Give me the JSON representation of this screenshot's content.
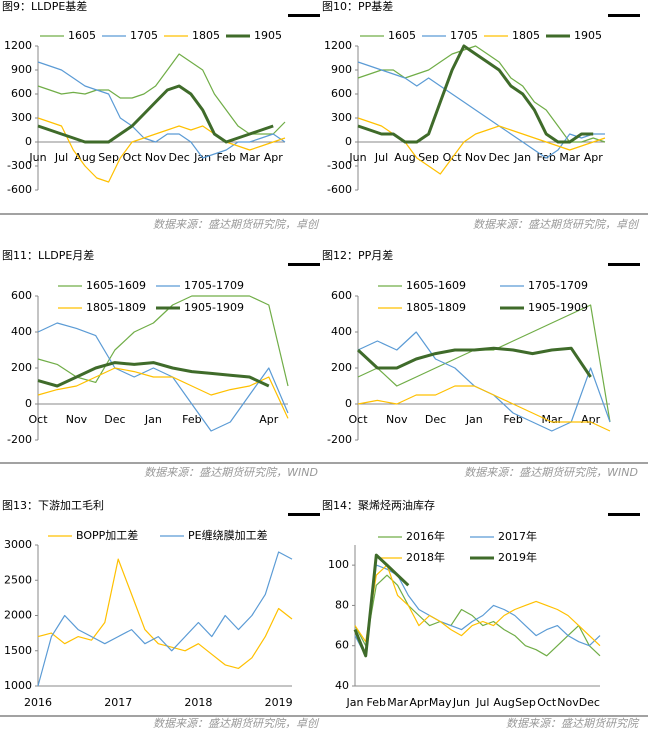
{
  "chart_data": [
    {
      "type": "line",
      "title": "图9：LLDPE基差",
      "source": "数据来源：盛达期货研究院，卓创",
      "categories": [
        "Jun",
        null,
        "Jul",
        null,
        "Aug",
        null,
        "Sep",
        null,
        "Oct",
        null,
        "Nov",
        null,
        "Dec",
        null,
        "Jan",
        null,
        "Feb",
        null,
        "Mar",
        null,
        "Apr",
        null
      ],
      "ylim": [
        -600,
        1200
      ],
      "yticks": [
        -600,
        -300,
        0,
        300,
        600,
        900,
        1200
      ],
      "series": [
        {
          "name": "1605",
          "color": "#70ad47",
          "line_width": 1.2,
          "values": [
            700,
            650,
            600,
            620,
            600,
            650,
            650,
            550,
            550,
            600,
            700,
            900,
            1100,
            1000,
            900,
            600,
            400,
            200,
            100,
            100,
            100,
            250
          ]
        },
        {
          "name": "1705",
          "color": "#5b9bd5",
          "line_width": 1.2,
          "values": [
            1000,
            950,
            900,
            800,
            700,
            650,
            600,
            300,
            200,
            50,
            0,
            100,
            100,
            0,
            -200,
            -150,
            -100,
            0,
            0,
            50,
            100,
            0
          ]
        },
        {
          "name": "1805",
          "color": "#ffc000",
          "line_width": 1.2,
          "values": [
            300,
            250,
            200,
            -100,
            -300,
            -450,
            -500,
            -200,
            0,
            50,
            100,
            150,
            200,
            150,
            200,
            100,
            0,
            -50,
            -100,
            -50,
            0,
            50
          ]
        },
        {
          "name": "1905",
          "color": "#3f6b2a",
          "line_width": 3,
          "values": [
            200,
            150,
            100,
            50,
            0,
            0,
            0,
            100,
            200,
            350,
            500,
            650,
            700,
            600,
            400,
            100,
            0,
            50,
            100,
            150,
            200,
            null
          ]
        }
      ]
    },
    {
      "type": "line",
      "title": "图10：PP基差",
      "source": "数据来源：盛达期货研究院，卓创",
      "categories": [
        "Jun",
        null,
        "Jul",
        null,
        "Aug",
        null,
        "Sep",
        null,
        "Oct",
        null,
        "Nov",
        null,
        "Dec",
        null,
        "Jan",
        null,
        "Feb",
        null,
        "Mar",
        null,
        "Apr",
        null
      ],
      "ylim": [
        -600,
        1200
      ],
      "yticks": [
        -600,
        -300,
        0,
        300,
        600,
        900,
        1200
      ],
      "series": [
        {
          "name": "1605",
          "color": "#70ad47",
          "line_width": 1.2,
          "values": [
            800,
            850,
            900,
            900,
            800,
            850,
            900,
            1000,
            1100,
            1150,
            1200,
            1100,
            1000,
            800,
            700,
            500,
            400,
            200,
            0,
            0,
            50,
            0
          ]
        },
        {
          "name": "1705",
          "color": "#5b9bd5",
          "line_width": 1.2,
          "values": [
            1000,
            950,
            900,
            850,
            800,
            700,
            800,
            700,
            600,
            500,
            400,
            300,
            200,
            100,
            0,
            -100,
            -200,
            -100,
            100,
            50,
            100,
            100
          ]
        },
        {
          "name": "1805",
          "color": "#ffc000",
          "line_width": 1.2,
          "values": [
            300,
            250,
            200,
            100,
            0,
            -200,
            -300,
            -400,
            -200,
            0,
            100,
            150,
            200,
            150,
            100,
            50,
            0,
            -50,
            -100,
            -50,
            0,
            50
          ]
        },
        {
          "name": "1905",
          "color": "#3f6b2a",
          "line_width": 3,
          "values": [
            200,
            150,
            100,
            100,
            0,
            0,
            100,
            500,
            900,
            1200,
            1100,
            1000,
            900,
            700,
            600,
            400,
            100,
            0,
            0,
            100,
            100,
            null
          ]
        }
      ]
    },
    {
      "type": "line",
      "title": "图11：LLDPE月差",
      "source": "数据来源：盛达期货研究院，WIND",
      "categories": [
        "Oct",
        null,
        "Nov",
        null,
        "Dec",
        null,
        "Jan",
        null,
        "Feb",
        null,
        null,
        null,
        "Apr",
        null
      ],
      "ylim": [
        -200,
        600
      ],
      "yticks": [
        -200,
        0,
        200,
        400,
        600
      ],
      "series": [
        {
          "name": "1605-1609",
          "color": "#70ad47",
          "line_width": 1.2,
          "values": [
            250,
            220,
            150,
            120,
            300,
            400,
            450,
            550,
            600,
            600,
            600,
            600,
            550,
            100
          ]
        },
        {
          "name": "1705-1709",
          "color": "#5b9bd5",
          "line_width": 1.2,
          "values": [
            400,
            450,
            420,
            380,
            200,
            150,
            200,
            150,
            0,
            -150,
            -100,
            50,
            200,
            -50
          ]
        },
        {
          "name": "1805-1809",
          "color": "#ffc000",
          "line_width": 1.2,
          "values": [
            50,
            80,
            100,
            150,
            200,
            180,
            150,
            150,
            100,
            50,
            80,
            100,
            150,
            -80
          ]
        },
        {
          "name": "1905-1909",
          "color": "#3f6b2a",
          "line_width": 3,
          "values": [
            130,
            100,
            150,
            200,
            230,
            220,
            230,
            200,
            180,
            170,
            160,
            150,
            100,
            null
          ]
        }
      ]
    },
    {
      "type": "line",
      "title": "图12：PP月差",
      "source": "数据来源：盛达期货研究院，WIND",
      "categories": [
        "Oct",
        null,
        "Nov",
        null,
        "Dec",
        null,
        "Jan",
        null,
        "Feb",
        null,
        "Mar",
        null,
        "Apr",
        null
      ],
      "ylim": [
        -200,
        600
      ],
      "yticks": [
        -200,
        0,
        200,
        400,
        600
      ],
      "series": [
        {
          "name": "1605-1609",
          "color": "#70ad47",
          "line_width": 1.2,
          "values": [
            150,
            200,
            100,
            150,
            200,
            250,
            300,
            300,
            350,
            400,
            450,
            500,
            550,
            -100
          ]
        },
        {
          "name": "1705-1709",
          "color": "#5b9bd5",
          "line_width": 1.2,
          "values": [
            300,
            350,
            300,
            400,
            250,
            200,
            100,
            50,
            -50,
            -100,
            -150,
            -100,
            200,
            -100
          ]
        },
        {
          "name": "1805-1809",
          "color": "#ffc000",
          "line_width": 1.2,
          "values": [
            0,
            20,
            0,
            50,
            50,
            100,
            100,
            50,
            0,
            -50,
            -100,
            -100,
            -100,
            -150
          ]
        },
        {
          "name": "1905-1909",
          "color": "#3f6b2a",
          "line_width": 3,
          "values": [
            300,
            200,
            200,
            250,
            280,
            300,
            300,
            310,
            300,
            280,
            300,
            310,
            150,
            null
          ]
        }
      ]
    },
    {
      "type": "line",
      "title": "图13：下游加工毛利",
      "source": "数据来源：盛达期货研究院，卓创",
      "categories": [
        "2016",
        null,
        null,
        null,
        null,
        null,
        "2017",
        null,
        null,
        null,
        null,
        null,
        "2018",
        null,
        null,
        null,
        null,
        null,
        "2019",
        null
      ],
      "ylim": [
        1000,
        3000
      ],
      "yticks": [
        1000,
        1500,
        2000,
        2500,
        3000
      ],
      "series": [
        {
          "name": "BOPP加工差",
          "color": "#ffc000",
          "line_width": 1.2,
          "values": [
            1700,
            1750,
            1600,
            1700,
            1650,
            1900,
            2800,
            2300,
            1800,
            1600,
            1550,
            1500,
            1600,
            1450,
            1300,
            1250,
            1400,
            1700,
            2100,
            1950
          ]
        },
        {
          "name": "PE缠绕膜加工差",
          "color": "#5b9bd5",
          "line_width": 1.2,
          "values": [
            1000,
            1700,
            2000,
            1800,
            1700,
            1600,
            1700,
            1800,
            1600,
            1700,
            1500,
            1700,
            1900,
            1700,
            2000,
            1800,
            2000,
            2300,
            2900,
            2800
          ]
        }
      ]
    },
    {
      "type": "line",
      "title": "图14：聚烯烃两油库存",
      "source": "数据来源：盛达期货研究院",
      "categories": [
        "Jan",
        null,
        "Feb",
        null,
        "Mar",
        null,
        "Apr",
        null,
        "May",
        null,
        "Jun",
        null,
        "Jul",
        null,
        "Aug",
        null,
        "Sep",
        null,
        "Oct",
        null,
        "Nov",
        null,
        "Dec",
        null
      ],
      "ylim": [
        40,
        110
      ],
      "yticks": [
        40,
        60,
        80,
        100
      ],
      "series": [
        {
          "name": "2016年",
          "color": "#70ad47",
          "line_width": 1.2,
          "values": [
            70,
            60,
            90,
            95,
            90,
            80,
            75,
            70,
            72,
            70,
            78,
            75,
            70,
            72,
            68,
            65,
            60,
            58,
            55,
            60,
            65,
            70,
            60,
            55
          ]
        },
        {
          "name": "2017年",
          "color": "#5b9bd5",
          "line_width": 1.2,
          "values": [
            65,
            55,
            100,
            98,
            95,
            85,
            78,
            75,
            72,
            70,
            68,
            72,
            75,
            80,
            78,
            75,
            70,
            65,
            68,
            70,
            65,
            62,
            60,
            65
          ]
        },
        {
          "name": "2018年",
          "color": "#ffc000",
          "line_width": 1.2,
          "values": [
            70,
            62,
            95,
            100,
            85,
            80,
            70,
            75,
            72,
            68,
            65,
            70,
            72,
            70,
            75,
            78,
            80,
            82,
            80,
            78,
            75,
            70,
            65,
            60
          ]
        },
        {
          "name": "2019年",
          "color": "#3f6b2a",
          "line_width": 3,
          "values": [
            68,
            55,
            105,
            100,
            95,
            90,
            null,
            null,
            null,
            null,
            null,
            null,
            null,
            null,
            null,
            null,
            null,
            null,
            null,
            null,
            null,
            null,
            null,
            null
          ]
        }
      ]
    }
  ]
}
